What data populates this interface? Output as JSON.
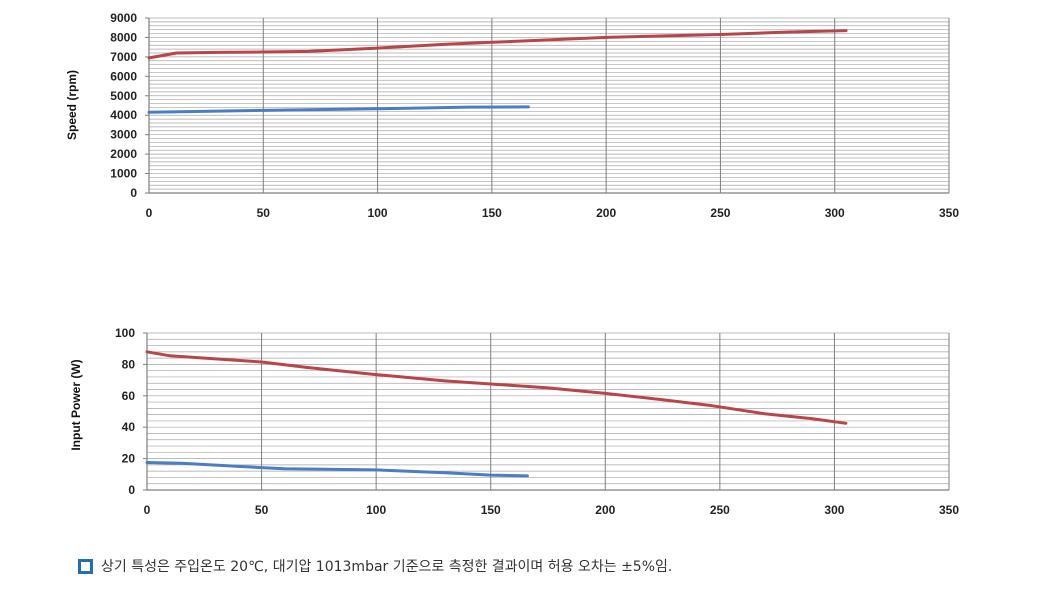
{
  "colors": {
    "series_red": "#b8454a",
    "series_blue": "#4a7ec4",
    "grid": "#a6a6a6",
    "axis": "#7f7f7f",
    "bullet": "#1f6fb5"
  },
  "footnote": {
    "text": "상기 특성은 주입온도 20℃, 대기압 1013mbar 기준으로 측정한 결과이며 허용 오차는 ±5%임.",
    "icon": "square-bullet-icon"
  },
  "chart_data": [
    {
      "type": "line",
      "title": "",
      "xlabel": "",
      "ylabel": "Speed (rpm)",
      "xlim": [
        0,
        350
      ],
      "ylim": [
        0,
        9000
      ],
      "x_ticks": [
        "0",
        "50",
        "100",
        "150",
        "200",
        "250",
        "300",
        "350"
      ],
      "y_ticks": [
        "0",
        "1000",
        "2000",
        "3000",
        "4000",
        "5000",
        "6000",
        "7000",
        "8000",
        "9000"
      ],
      "grid": true,
      "series": [
        {
          "color": "#b8454a",
          "points": [
            [
              0,
              6950
            ],
            [
              5,
              7050
            ],
            [
              12,
              7200
            ],
            [
              30,
              7230
            ],
            [
              50,
              7250
            ],
            [
              70,
              7280
            ],
            [
              100,
              7450
            ],
            [
              130,
              7650
            ],
            [
              150,
              7750
            ],
            [
              180,
              7900
            ],
            [
              200,
              8000
            ],
            [
              250,
              8150
            ],
            [
              280,
              8280
            ],
            [
              305,
              8350
            ]
          ]
        },
        {
          "color": "#4a7ec4",
          "points": [
            [
              0,
              4150
            ],
            [
              50,
              4250
            ],
            [
              100,
              4330
            ],
            [
              140,
              4420
            ],
            [
              166,
              4430
            ]
          ]
        }
      ]
    },
    {
      "type": "line",
      "title": "",
      "xlabel": "",
      "ylabel": "Input Power (W)",
      "xlim": [
        0,
        350
      ],
      "ylim": [
        0,
        100
      ],
      "x_ticks": [
        "0",
        "50",
        "100",
        "150",
        "200",
        "250",
        "300",
        "350"
      ],
      "y_ticks": [
        "0",
        "20",
        "40",
        "60",
        "80",
        "100"
      ],
      "grid": true,
      "series": [
        {
          "color": "#b8454a",
          "points": [
            [
              0,
              88
            ],
            [
              10,
              85.5
            ],
            [
              30,
              83.5
            ],
            [
              50,
              81.5
            ],
            [
              70,
              78
            ],
            [
              100,
              73.5
            ],
            [
              130,
              69.5
            ],
            [
              150,
              67.5
            ],
            [
              175,
              65
            ],
            [
              200,
              61.5
            ],
            [
              225,
              57.5
            ],
            [
              245,
              54
            ],
            [
              270,
              48.5
            ],
            [
              290,
              45.5
            ],
            [
              305,
              42.5
            ]
          ]
        },
        {
          "color": "#4a7ec4",
          "points": [
            [
              0,
              17.5
            ],
            [
              15,
              17
            ],
            [
              40,
              15
            ],
            [
              60,
              13.5
            ],
            [
              100,
              12.8
            ],
            [
              130,
              11
            ],
            [
              150,
              9.5
            ],
            [
              166,
              9
            ]
          ]
        }
      ]
    }
  ]
}
